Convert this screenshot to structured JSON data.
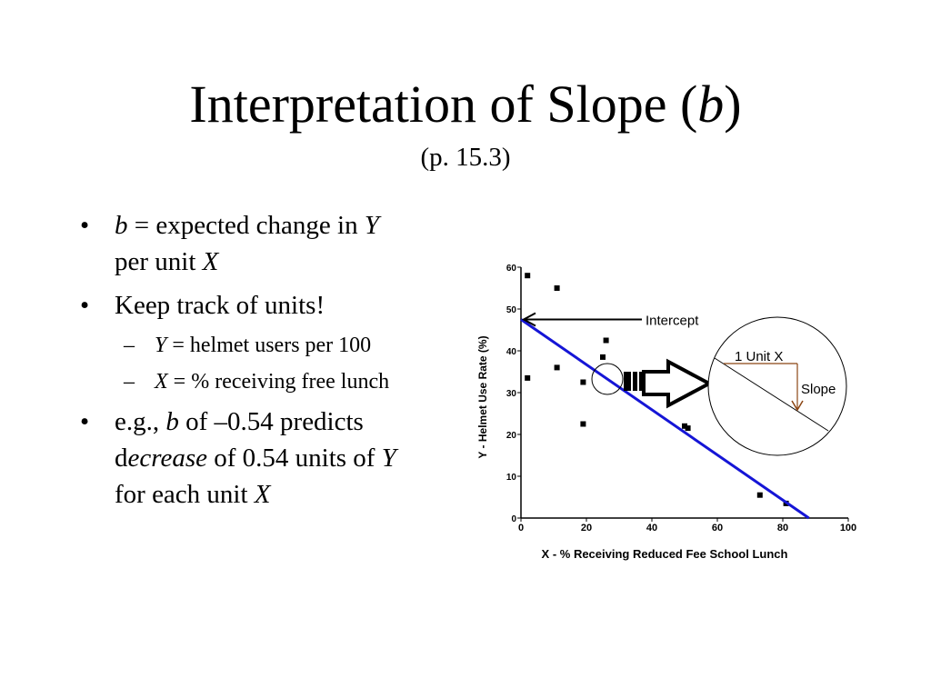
{
  "slide": {
    "title_main": "Interpretation of Slope (",
    "title_var": "b",
    "title_close": ")",
    "subtitle": "(p. 15.3)"
  },
  "bullets": {
    "b1": {
      "bullet": "•",
      "var_b": "b",
      "text1": " = expected change in ",
      "var_y": "Y",
      "text2": "per unit ",
      "var_x": "X"
    },
    "b2": {
      "bullet": "•",
      "text": "Keep track of units!"
    },
    "b2a": {
      "dash": "–",
      "var": "Y",
      "text": " = helmet users per 100"
    },
    "b2b": {
      "dash": "–",
      "var": "X",
      "text": " = % receiving free lunch"
    },
    "b3": {
      "bullet": "•",
      "text1": "e.g., ",
      "var_b": "b",
      "text2": " of  –0.54 predicts",
      "text3": "d",
      "text4": "ecrease",
      "text5": " of 0.54 units of ",
      "var_y": "Y",
      "text6": "for each unit ",
      "var_x": "X"
    }
  },
  "chart_data": {
    "type": "scatter",
    "xlabel": "X - % Receiving Reduced Fee School Lunch",
    "ylabel": "Y - Helmet Use Rate (%)",
    "xlim": [
      0,
      100
    ],
    "ylim": [
      0,
      60
    ],
    "xticks": [
      0,
      20,
      40,
      60,
      80,
      100
    ],
    "yticks": [
      0,
      10,
      20,
      30,
      40,
      50,
      60
    ],
    "points": [
      {
        "x": 2,
        "y": 58
      },
      {
        "x": 11,
        "y": 55
      },
      {
        "x": 26,
        "y": 42.5
      },
      {
        "x": 25,
        "y": 38.5
      },
      {
        "x": 11,
        "y": 36
      },
      {
        "x": 2,
        "y": 33.5
      },
      {
        "x": 19,
        "y": 32.5
      },
      {
        "x": 19,
        "y": 22.5
      },
      {
        "x": 50,
        "y": 22
      },
      {
        "x": 51,
        "y": 21.5
      },
      {
        "x": 73,
        "y": 5.5
      },
      {
        "x": 81,
        "y": 3.5
      }
    ],
    "regression_line": {
      "intercept": 47.5,
      "slope": -0.54,
      "color": "#1515d6"
    },
    "annotations": {
      "intercept_label": "Intercept",
      "unit_label": "1 Unit X",
      "slope_label": "Slope",
      "slope_color": "#8b4513"
    },
    "grid": false
  }
}
